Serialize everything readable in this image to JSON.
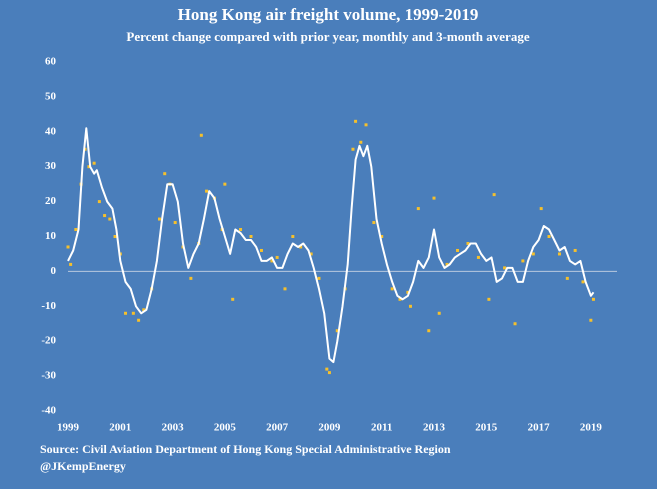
{
  "chart_data": {
    "type": "line",
    "title": "Hong Kong air freight volume, 1999-2019",
    "subtitle": "Percent change compared with prior year, monthly and 3-month average",
    "source": "Source: Civil Aviation Department of Hong Kong Special Administrative Region",
    "credit": "@JKempEnergy",
    "xlim": [
      1999,
      2020
    ],
    "xticks": [
      1999,
      2001,
      2003,
      2005,
      2007,
      2009,
      2011,
      2013,
      2015,
      2017,
      2019
    ],
    "ylim": [
      -40,
      60
    ],
    "yticks": [
      -40,
      -30,
      -20,
      -10,
      0,
      10,
      20,
      30,
      40,
      50,
      60
    ],
    "grid": false,
    "series": [
      {
        "type": "scatter",
        "color": "#f5c02c",
        "x": [
          1999.0,
          1999.1,
          1999.3,
          1999.5,
          1999.65,
          1999.8,
          2000.0,
          2000.2,
          2000.4,
          2000.6,
          2000.8,
          2001.0,
          2001.2,
          2001.5,
          2001.7,
          2001.9,
          2002.2,
          2002.5,
          2002.7,
          2002.9,
          2003.1,
          2003.4,
          2003.7,
          2004.0,
          2004.1,
          2004.3,
          2004.6,
          2004.9,
          2005.0,
          2005.3,
          2005.6,
          2006.0,
          2006.4,
          2006.8,
          2007.0,
          2007.3,
          2007.6,
          2007.9,
          2008.3,
          2008.6,
          2008.9,
          2009.0,
          2009.3,
          2009.6,
          2009.9,
          2010.0,
          2010.2,
          2010.4,
          2010.7,
          2011.0,
          2011.4,
          2011.7,
          2012.0,
          2012.1,
          2012.4,
          2012.8,
          2013.0,
          2013.2,
          2013.5,
          2013.9,
          2014.3,
          2014.7,
          2015.1,
          2015.3,
          2015.7,
          2016.1,
          2016.4,
          2016.8,
          2017.1,
          2017.4,
          2017.8,
          2018.1,
          2018.4,
          2018.7,
          2019.0,
          2019.1
        ],
        "values": [
          7,
          2,
          12,
          25,
          35,
          30,
          31,
          20,
          16,
          15,
          10,
          5,
          -12,
          -12,
          -14,
          -11,
          -5,
          15,
          28,
          25,
          14,
          7,
          -2,
          8,
          39,
          23,
          21,
          12,
          25,
          -8,
          12,
          10,
          6,
          3,
          4,
          -5,
          10,
          7,
          5,
          -2,
          -28,
          -29,
          -17,
          -5,
          35,
          43,
          37,
          42,
          14,
          10,
          -5,
          -8,
          -6,
          -10,
          18,
          -17,
          21,
          -12,
          2,
          6,
          8,
          4,
          -8,
          22,
          1,
          -15,
          3,
          5,
          18,
          10,
          5,
          -2,
          6,
          -3,
          -14,
          -8
        ]
      },
      {
        "type": "line",
        "color": "#ffffff",
        "x": [
          1999.0,
          1999.2,
          1999.4,
          1999.55,
          1999.7,
          1999.85,
          2000.0,
          2000.1,
          2000.3,
          2000.5,
          2000.7,
          2000.85,
          2001.0,
          2001.2,
          2001.4,
          2001.6,
          2001.8,
          2002.0,
          2002.2,
          2002.4,
          2002.6,
          2002.8,
          2003.0,
          2003.2,
          2003.4,
          2003.6,
          2003.8,
          2004.0,
          2004.2,
          2004.4,
          2004.6,
          2004.8,
          2005.0,
          2005.2,
          2005.4,
          2005.6,
          2005.8,
          2006.0,
          2006.2,
          2006.4,
          2006.6,
          2006.8,
          2007.0,
          2007.2,
          2007.4,
          2007.6,
          2007.8,
          2008.0,
          2008.2,
          2008.4,
          2008.6,
          2008.8,
          2009.0,
          2009.15,
          2009.3,
          2009.5,
          2009.7,
          2009.85,
          2010.0,
          2010.15,
          2010.3,
          2010.45,
          2010.6,
          2010.8,
          2011.0,
          2011.2,
          2011.4,
          2011.6,
          2011.8,
          2012.0,
          2012.2,
          2012.4,
          2012.6,
          2012.8,
          2013.0,
          2013.2,
          2013.4,
          2013.6,
          2013.8,
          2014.0,
          2014.2,
          2014.4,
          2014.6,
          2014.8,
          2015.0,
          2015.2,
          2015.4,
          2015.6,
          2015.8,
          2016.0,
          2016.2,
          2016.4,
          2016.6,
          2016.8,
          2017.0,
          2017.2,
          2017.4,
          2017.6,
          2017.8,
          2018.0,
          2018.2,
          2018.4,
          2018.6,
          2018.8,
          2019.0,
          2019.1
        ],
        "values": [
          3,
          6,
          12,
          30,
          41,
          30,
          28,
          29,
          24,
          20,
          18,
          12,
          3,
          -3,
          -5,
          -10,
          -12,
          -11,
          -5,
          3,
          15,
          25,
          25,
          20,
          8,
          1,
          5,
          8,
          15,
          23,
          21,
          15,
          10,
          5,
          12,
          11,
          9,
          9,
          7,
          3,
          3,
          4,
          1,
          1,
          5,
          8,
          7,
          8,
          6,
          1,
          -5,
          -12,
          -25,
          -26,
          -20,
          -10,
          2,
          18,
          32,
          36,
          33,
          36,
          30,
          15,
          8,
          2,
          -3,
          -7,
          -8,
          -7,
          -3,
          3,
          1,
          4,
          12,
          4,
          1,
          2,
          4,
          5,
          6,
          8,
          8,
          5,
          3,
          4,
          -3,
          -2,
          1,
          1,
          -3,
          -3,
          3,
          7,
          9,
          13,
          12,
          9,
          6,
          7,
          3,
          2,
          3,
          -3,
          -7,
          -6
        ]
      }
    ]
  }
}
